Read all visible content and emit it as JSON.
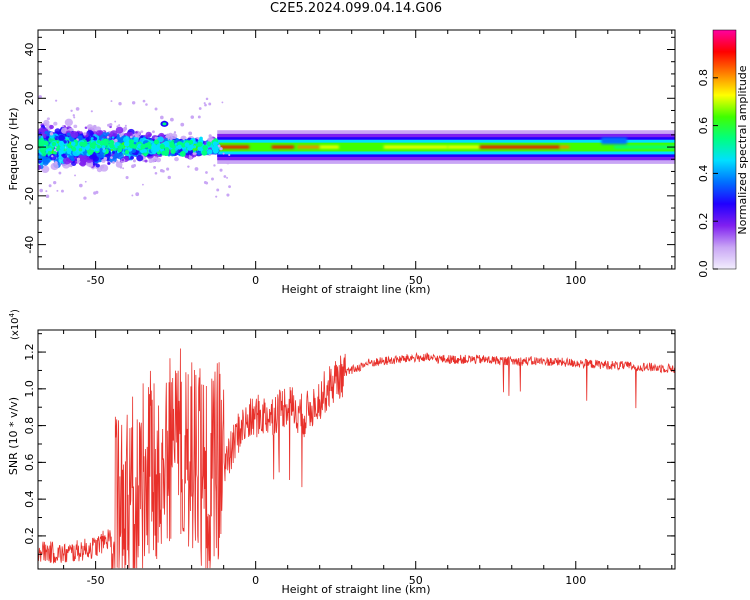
{
  "title": "C2E5.2024.099.04.14.G06",
  "chart_data": [
    {
      "type": "heatmap",
      "xlabel": "Height of straight line (km)",
      "ylabel": "Frequency (Hz)",
      "xlim": [
        -68,
        131
      ],
      "ylim": [
        -50,
        48
      ],
      "xticks": [
        -50,
        0,
        50,
        100
      ],
      "xtick_labels": [
        "-50",
        "0",
        "50",
        "100"
      ],
      "yticks": [
        -40,
        -20,
        0,
        20,
        40
      ],
      "ytick_labels": [
        "-40",
        "-20",
        "0",
        "20",
        "40"
      ],
      "colorbar": {
        "label": "Normalized spectral amplitude",
        "range": [
          0,
          1
        ],
        "ticks": [
          0.0,
          0.2,
          0.4,
          0.6,
          0.8
        ],
        "tick_labels": [
          "0.0",
          "0.2",
          "0.4",
          "0.6",
          "0.8"
        ],
        "colormap": [
          "#f2eefd",
          "#c9a6f5",
          "#8020f0",
          "#2000ff",
          "#0070ff",
          "#00e0ff",
          "#00ff80",
          "#40ff00",
          "#ffff00",
          "#ff8000",
          "#ff0000",
          "#ff00a0"
        ]
      },
      "band": {
        "center_hz": 0,
        "noisy_region_km": [
          -68,
          -12
        ],
        "noisy_spread_hz": [
          -16,
          14
        ],
        "stable_region_km": [
          -12,
          131
        ],
        "stable_halfwidth_hz": 3
      }
    },
    {
      "type": "line",
      "xlabel": "Height of straight line (km)",
      "ylabel": "SNR (10 * v/v)",
      "exponent_label": "(x10",
      "exponent_power": "4",
      "exponent_close": ")",
      "xlim": [
        -68,
        131
      ],
      "ylim": [
        0.02,
        1.32
      ],
      "xticks": [
        -50,
        0,
        50,
        100
      ],
      "xtick_labels": [
        "-50",
        "0",
        "50",
        "100"
      ],
      "yticks": [
        0.2,
        0.4,
        0.6,
        0.8,
        1.0,
        1.2
      ],
      "ytick_labels": [
        "0.2",
        "0.4",
        "0.6",
        "0.8",
        "1.0",
        "1.2"
      ],
      "color": "#e8302a",
      "series": {
        "name": "SNR",
        "x": [
          -68,
          -60,
          -50,
          -45,
          -40,
          -35,
          -30,
          -25,
          -20,
          -15,
          -10,
          -5,
          0,
          5,
          10,
          15,
          20,
          25,
          30,
          35,
          40,
          45,
          50,
          60,
          70,
          80,
          90,
          100,
          110,
          120,
          131
        ],
        "y": [
          0.12,
          0.1,
          0.14,
          0.2,
          0.3,
          0.42,
          0.55,
          0.65,
          0.55,
          0.45,
          0.55,
          0.78,
          0.85,
          0.86,
          0.92,
          0.85,
          0.95,
          1.05,
          1.1,
          1.14,
          1.15,
          1.16,
          1.17,
          1.16,
          1.16,
          1.15,
          1.15,
          1.14,
          1.13,
          1.12,
          1.11
        ]
      }
    }
  ]
}
